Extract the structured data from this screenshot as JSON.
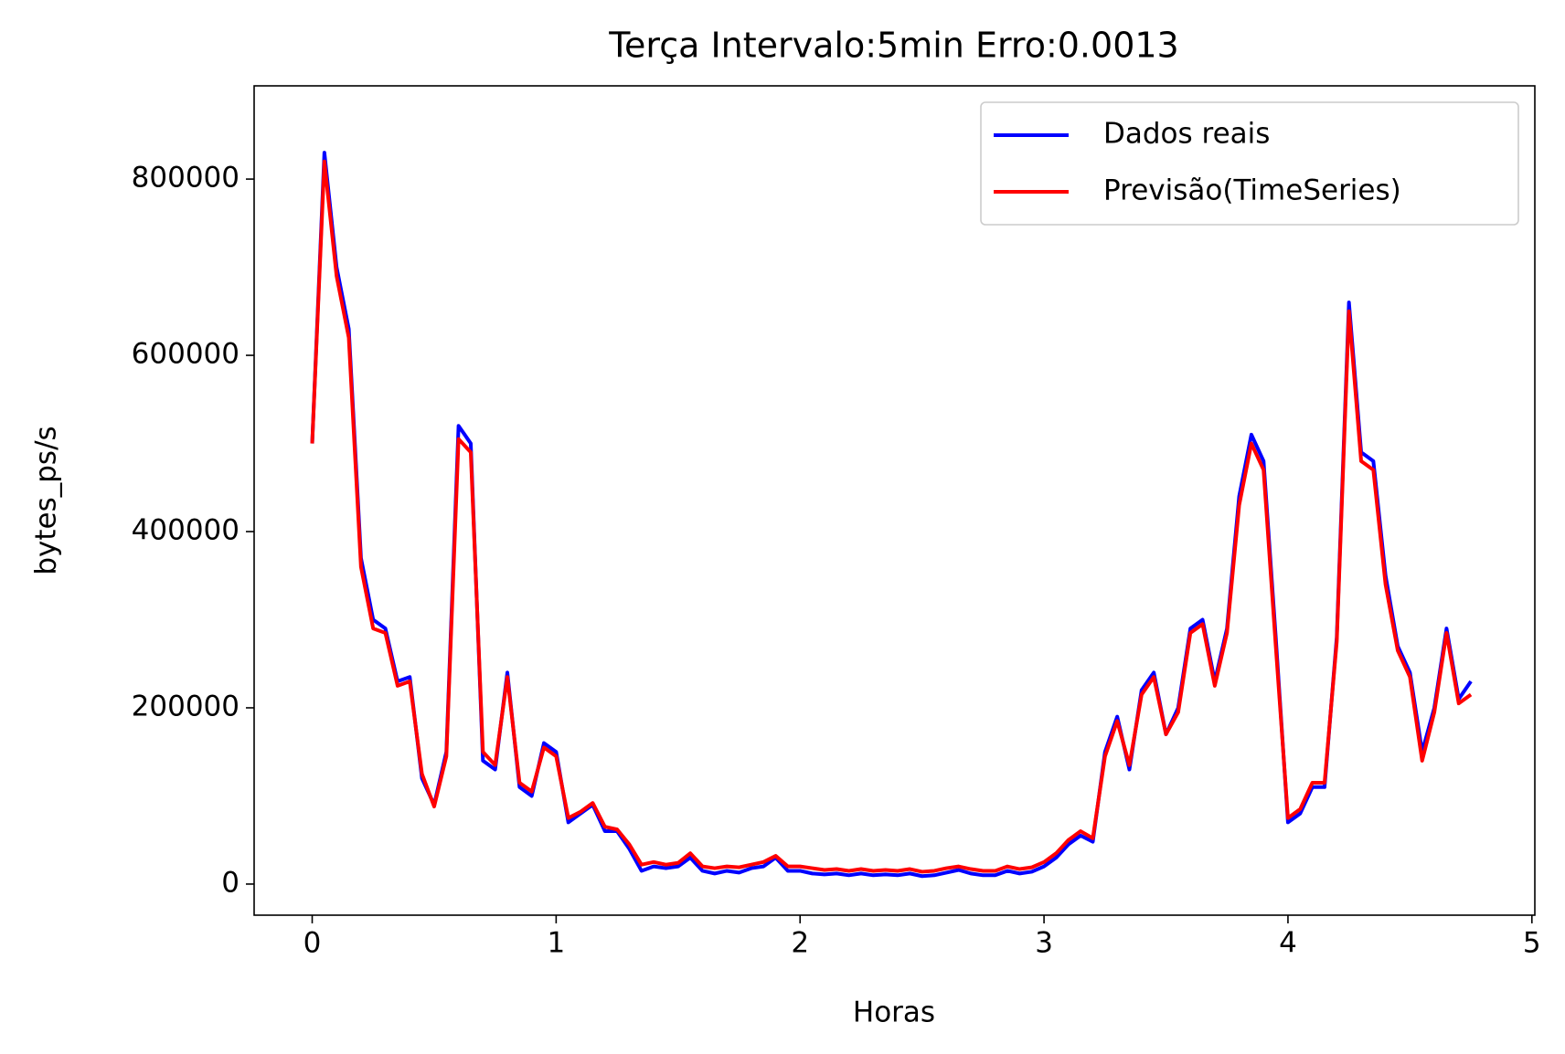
{
  "chart_data": {
    "type": "line",
    "title": "Terça Intervalo:5min Erro:0.0013",
    "xlabel": "Horas",
    "ylabel": "bytes_ps/s",
    "x": [
      0,
      0.05,
      0.1,
      0.15,
      0.2,
      0.25,
      0.3,
      0.35,
      0.4,
      0.45,
      0.5,
      0.55,
      0.6,
      0.65,
      0.7,
      0.75,
      0.8,
      0.85,
      0.9,
      0.95,
      1,
      1.05,
      1.1,
      1.15,
      1.2,
      1.25,
      1.3,
      1.35,
      1.4,
      1.45,
      1.5,
      1.55,
      1.6,
      1.65,
      1.7,
      1.75,
      1.8,
      1.85,
      1.9,
      1.95,
      2,
      2.05,
      2.1,
      2.15,
      2.2,
      2.25,
      2.3,
      2.35,
      2.4,
      2.45,
      2.5,
      2.55,
      2.6,
      2.65,
      2.7,
      2.75,
      2.8,
      2.85,
      2.9,
      2.95,
      3,
      3.05,
      3.1,
      3.15,
      3.2,
      3.25,
      3.3,
      3.35,
      3.4,
      3.45,
      3.5,
      3.55,
      3.6,
      3.65,
      3.7,
      3.75,
      3.8,
      3.85,
      3.9,
      3.95,
      4,
      4.05,
      4.1,
      4.15,
      4.2,
      4.25,
      4.3,
      4.35,
      4.4,
      4.45,
      4.5,
      4.55,
      4.6,
      4.65,
      4.7,
      4.75
    ],
    "series": [
      {
        "name": "Dados reais",
        "color": "#0000ff",
        "values": [
          500000,
          830000,
          700000,
          630000,
          370000,
          300000,
          290000,
          230000,
          235000,
          120000,
          90000,
          150000,
          520000,
          500000,
          140000,
          130000,
          240000,
          110000,
          100000,
          160000,
          150000,
          70000,
          80000,
          90000,
          60000,
          60000,
          40000,
          15000,
          20000,
          18000,
          20000,
          30000,
          15000,
          12000,
          15000,
          13000,
          18000,
          20000,
          30000,
          15000,
          15000,
          12000,
          11000,
          12000,
          10000,
          12000,
          10000,
          11000,
          10000,
          12000,
          9000,
          10000,
          13000,
          16000,
          12000,
          10000,
          10000,
          15000,
          12000,
          14000,
          20000,
          30000,
          45000,
          55000,
          48000,
          150000,
          190000,
          130000,
          220000,
          240000,
          170000,
          200000,
          290000,
          300000,
          230000,
          290000,
          440000,
          510000,
          480000,
          280000,
          70000,
          80000,
          110000,
          110000,
          280000,
          660000,
          490000,
          480000,
          350000,
          270000,
          240000,
          150000,
          200000,
          290000,
          210000,
          230000
        ]
      },
      {
        "name": "Previsão(TimeSeries)",
        "color": "#ff0000",
        "values": [
          500000,
          820000,
          690000,
          620000,
          360000,
          290000,
          285000,
          225000,
          230000,
          125000,
          88000,
          145000,
          505000,
          490000,
          150000,
          135000,
          235000,
          115000,
          105000,
          155000,
          145000,
          75000,
          82000,
          92000,
          65000,
          62000,
          45000,
          22000,
          25000,
          22000,
          24000,
          35000,
          20000,
          18000,
          20000,
          19000,
          22000,
          25000,
          32000,
          20000,
          20000,
          18000,
          16000,
          17000,
          15000,
          17000,
          15000,
          16000,
          15000,
          17000,
          14000,
          15000,
          18000,
          20000,
          17000,
          15000,
          15000,
          20000,
          17000,
          19000,
          25000,
          35000,
          50000,
          60000,
          52000,
          145000,
          185000,
          135000,
          215000,
          235000,
          170000,
          195000,
          285000,
          295000,
          225000,
          285000,
          430000,
          500000,
          470000,
          270000,
          75000,
          85000,
          115000,
          115000,
          275000,
          650000,
          480000,
          470000,
          340000,
          265000,
          235000,
          140000,
          195000,
          285000,
          205000,
          215000
        ]
      }
    ],
    "xlim": [
      -0.238,
      5.012
    ],
    "xticks": [
      0,
      1,
      2,
      3,
      4,
      5
    ],
    "ylim": [
      -35300,
      905800
    ],
    "yticks": [
      0,
      200000,
      400000,
      600000,
      800000
    ],
    "legend": "upper right"
  }
}
